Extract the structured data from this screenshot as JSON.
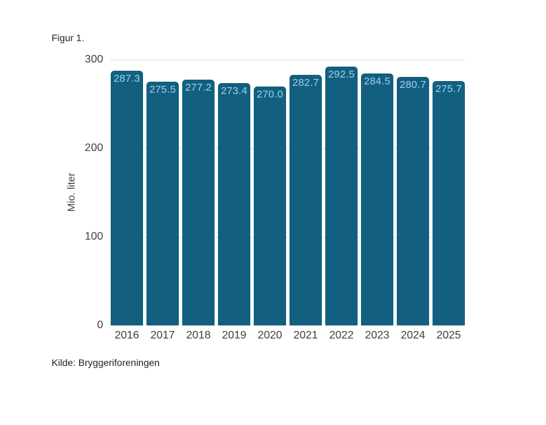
{
  "figure": {
    "title": "Figur 1.",
    "source": "Kilde: Bryggeriforeningen"
  },
  "chart_data": {
    "type": "bar",
    "title": "Figur 1.",
    "categories": [
      "2016",
      "2017",
      "2018",
      "2019",
      "2020",
      "2021",
      "2022",
      "2023",
      "2024",
      "2025"
    ],
    "values": [
      287.3,
      275.5,
      277.2,
      273.4,
      270.0,
      282.7,
      292.5,
      284.5,
      280.7,
      275.7
    ],
    "value_labels": [
      "287.3",
      "275.5",
      "277.2",
      "273.4",
      "270.0",
      "282.7",
      "292.5",
      "284.5",
      "280.7",
      "275.7"
    ],
    "xlabel": "",
    "ylabel": "Mio. liter",
    "ylim": [
      0,
      300
    ],
    "yticks": [
      0,
      100,
      200,
      300
    ],
    "grid": true,
    "legend": false,
    "bar_color": "#135f80",
    "bar_value_color": "#9cd2e9",
    "gridline_color": "#d9d9d9",
    "source": "Kilde: Bryggeriforeningen"
  }
}
